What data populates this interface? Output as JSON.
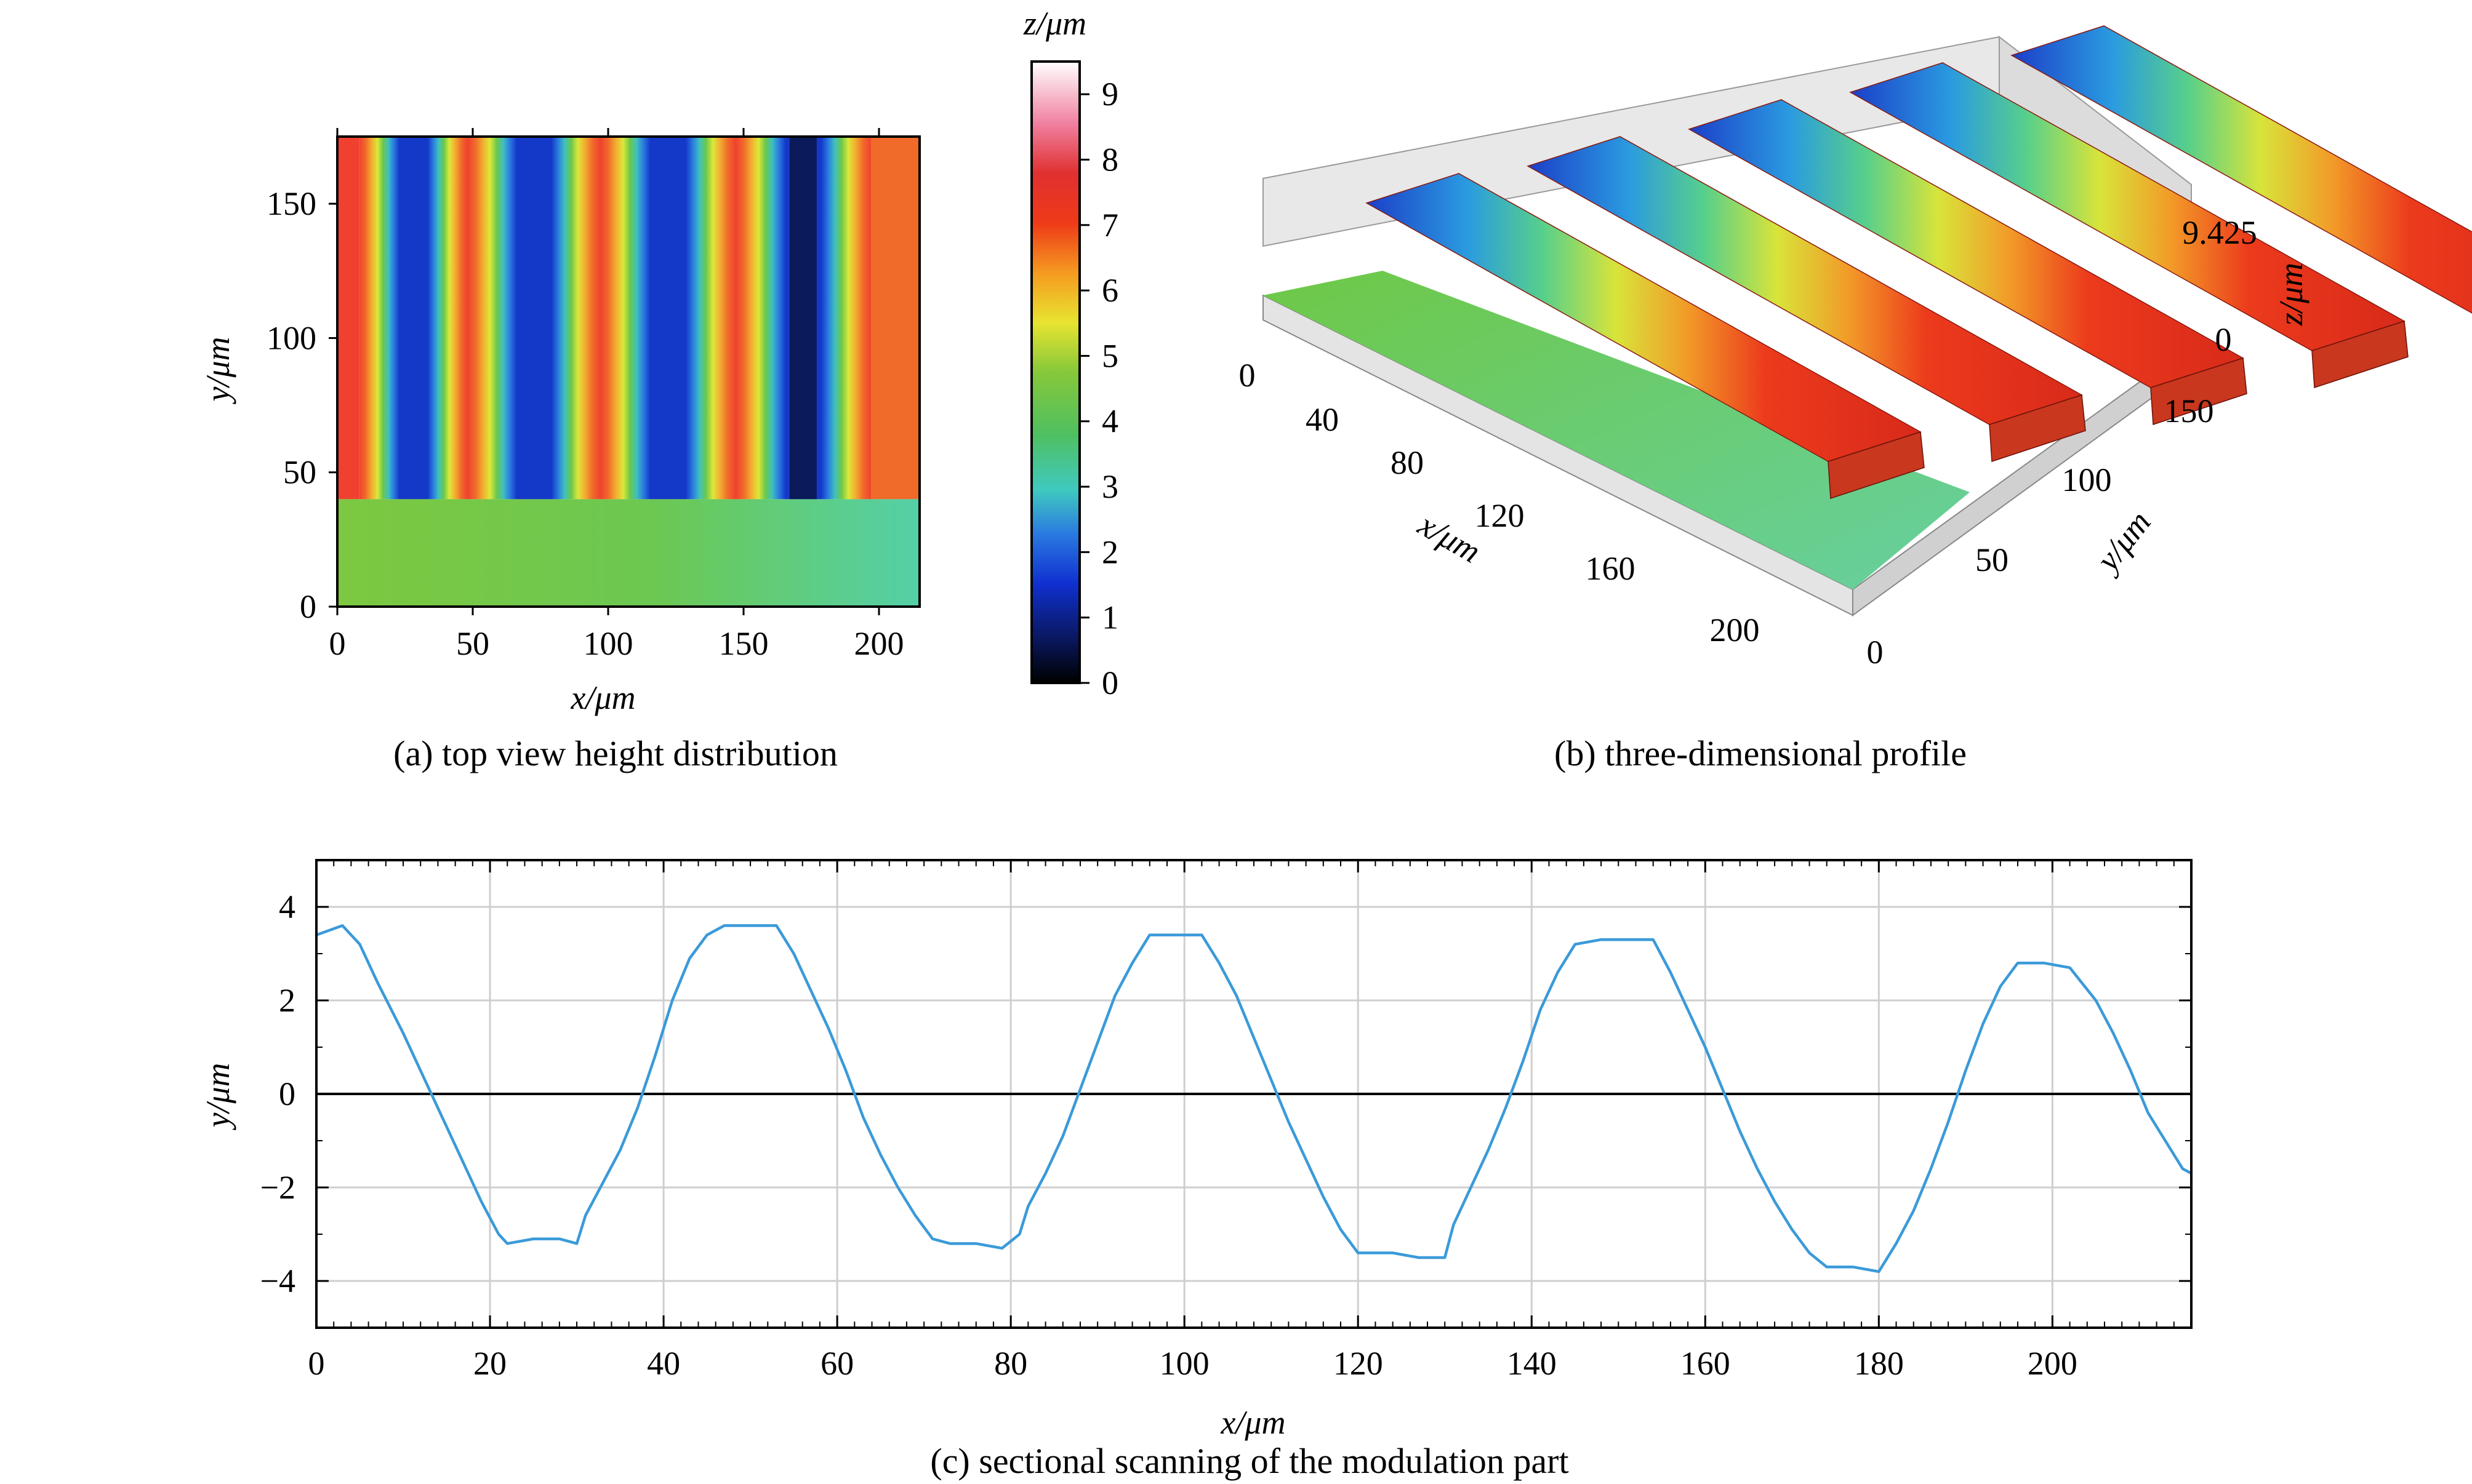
{
  "colors": {
    "profile_line": "#3a9ad9",
    "grid": "#cfcfcf",
    "axis": "#000000"
  },
  "colormap_name": "jet-like height colormap",
  "chart_data": [
    {
      "id": "a",
      "type": "heatmap",
      "caption": "(a) top view height distribution",
      "xlabel": "x/μm",
      "ylabel": "y/μm",
      "xlim": [
        0,
        215
      ],
      "ylim": [
        0,
        175
      ],
      "xticks": [
        0,
        50,
        100,
        150,
        200
      ],
      "yticks": [
        0,
        50,
        100,
        150
      ],
      "grating_ridge_centers_x": [
        8,
        48,
        97,
        147,
        197
      ],
      "grating_groove_centers_x": [
        25,
        73,
        122,
        172
      ],
      "grating_y_range": [
        40,
        175
      ],
      "flat_region_y_range": [
        0,
        40
      ],
      "flat_region_z": 3.6,
      "colorbar": {
        "label": "z/μm",
        "range": [
          0,
          9.5
        ],
        "ticks": [
          0,
          1,
          2,
          3,
          4,
          5,
          6,
          7,
          8,
          9
        ]
      }
    },
    {
      "id": "b",
      "type": "surface3d",
      "caption": "(b) three-dimensional profile",
      "xlabel": "x/μm",
      "ylabel": "y/μm",
      "zlabel": "z/μm",
      "xticks": [
        0,
        40,
        80,
        120,
        160,
        200
      ],
      "yticks": [
        0,
        50,
        100,
        150
      ],
      "zticks": [
        "0",
        "9.425"
      ],
      "zmax": 9.425,
      "ridge_count": 5
    },
    {
      "id": "c",
      "type": "line",
      "caption": "(c) sectional scanning of the modulation part",
      "xlabel": "x/μm",
      "ylabel": "y/μm",
      "xlim": [
        0,
        216
      ],
      "ylim": [
        -5,
        5
      ],
      "xticks": [
        0,
        20,
        40,
        60,
        80,
        100,
        120,
        140,
        160,
        180,
        200
      ],
      "yticks": [
        -4,
        -2,
        0,
        2,
        4
      ],
      "grid": true,
      "series": [
        {
          "x": [
            0,
            3,
            5,
            7,
            10,
            13,
            16,
            19,
            21,
            22,
            25,
            28,
            30,
            31,
            33,
            35,
            37,
            39,
            41,
            43,
            45,
            47,
            50,
            53,
            55,
            57,
            59,
            61,
            63,
            65,
            67,
            69,
            71,
            73,
            76,
            79,
            81,
            82,
            84,
            86,
            88,
            90,
            92,
            94,
            96,
            99,
            102,
            104,
            106,
            108,
            110,
            112,
            114,
            116,
            118,
            120,
            122,
            124,
            127,
            130,
            131,
            133,
            135,
            137,
            139,
            141,
            143,
            145,
            148,
            151,
            154,
            156,
            158,
            160,
            162,
            164,
            166,
            168,
            170,
            172,
            174,
            177,
            180,
            182,
            184,
            186,
            188,
            190,
            192,
            194,
            196,
            199,
            202,
            205,
            207,
            209,
            211,
            213,
            215,
            216
          ],
          "y": [
            3.4,
            3.6,
            3.2,
            2.4,
            1.3,
            0.1,
            -1.1,
            -2.3,
            -3.0,
            -3.2,
            -3.1,
            -3.1,
            -3.2,
            -2.6,
            -1.9,
            -1.2,
            -0.3,
            0.8,
            2.0,
            2.9,
            3.4,
            3.6,
            3.6,
            3.6,
            3.0,
            2.2,
            1.4,
            0.5,
            -0.5,
            -1.3,
            -2.0,
            -2.6,
            -3.1,
            -3.2,
            -3.2,
            -3.3,
            -3.0,
            -2.4,
            -1.7,
            -0.9,
            0.1,
            1.1,
            2.1,
            2.8,
            3.4,
            3.4,
            3.4,
            2.8,
            2.1,
            1.2,
            0.3,
            -0.6,
            -1.4,
            -2.2,
            -2.9,
            -3.4,
            -3.4,
            -3.4,
            -3.5,
            -3.5,
            -2.8,
            -2.0,
            -1.2,
            -0.3,
            0.7,
            1.8,
            2.6,
            3.2,
            3.3,
            3.3,
            3.3,
            2.6,
            1.8,
            1.0,
            0.1,
            -0.8,
            -1.6,
            -2.3,
            -2.9,
            -3.4,
            -3.7,
            -3.7,
            -3.8,
            -3.2,
            -2.5,
            -1.6,
            -0.6,
            0.5,
            1.5,
            2.3,
            2.8,
            2.8,
            2.7,
            2.0,
            1.3,
            0.5,
            -0.4,
            -1.0,
            -1.6,
            -1.7
          ]
        }
      ],
      "reference_line_y": 0
    }
  ]
}
